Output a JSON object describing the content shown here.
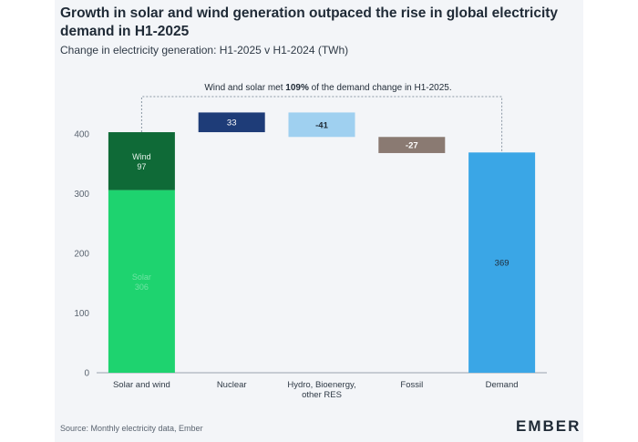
{
  "header": {
    "title": "Growth in solar and wind generation outpaced the rise in global electricity demand in H1-2025",
    "subtitle": "Change in electricity generation: H1-2025 v H1-2024 (TWh)"
  },
  "annotation": {
    "prefix": "Wind and solar met ",
    "bold": "109%",
    "suffix": " of the demand change in H1-2025."
  },
  "footer": {
    "source": "Source: Monthly electricity data, Ember",
    "logo": "EMBER"
  },
  "chart_data": {
    "type": "bar",
    "subtype": "waterfall",
    "title": "Growth in solar and wind generation outpaced the rise in global electricity demand in H1-2025",
    "subtitle": "Change in electricity generation: H1-2025 v H1-2024 (TWh)",
    "categories": [
      "Solar and wind",
      "Nuclear",
      "Hydro, Bioenergy, other RES",
      "Fossil",
      "Demand"
    ],
    "category_lines": [
      [
        "Solar and wind"
      ],
      [
        "Nuclear"
      ],
      [
        "Hydro, Bioenergy,",
        "other RES"
      ],
      [
        "Fossil"
      ],
      [
        "Demand"
      ]
    ],
    "ylim": [
      0,
      400
    ],
    "yticks": [
      0,
      100,
      200,
      300,
      400
    ],
    "grid": false,
    "bars": [
      {
        "category": "Solar and wind",
        "label": "Solar",
        "value": 306,
        "base": 0,
        "color": "#1ed36f",
        "value_label": "306",
        "label_color": "#6fe3a3"
      },
      {
        "category": "Solar and wind",
        "label": "Wind",
        "value": 97,
        "base": 306,
        "color": "#0f6a37",
        "value_label": "97",
        "label_color": "#e6f5ec"
      },
      {
        "category": "Nuclear",
        "label": "",
        "value": 33,
        "base": 403,
        "color": "#1e3c78",
        "value_label": "33",
        "label_color": "#ffffff"
      },
      {
        "category": "Hydro, Bioenergy, other RES",
        "label": "",
        "value": -41,
        "base": 436,
        "color": "#9fd0f0",
        "value_label": "-41",
        "label_color": "#1f2a36"
      },
      {
        "category": "Fossil",
        "label": "",
        "value": -27,
        "base": 395,
        "color": "#8a7a72",
        "value_label": "-27",
        "label_color": "#ffffff"
      },
      {
        "category": "Demand",
        "label": "",
        "value": 369,
        "base": 0,
        "color": "#3aa6e6",
        "value_label": "369",
        "label_color": "#1f2a36"
      }
    ]
  }
}
